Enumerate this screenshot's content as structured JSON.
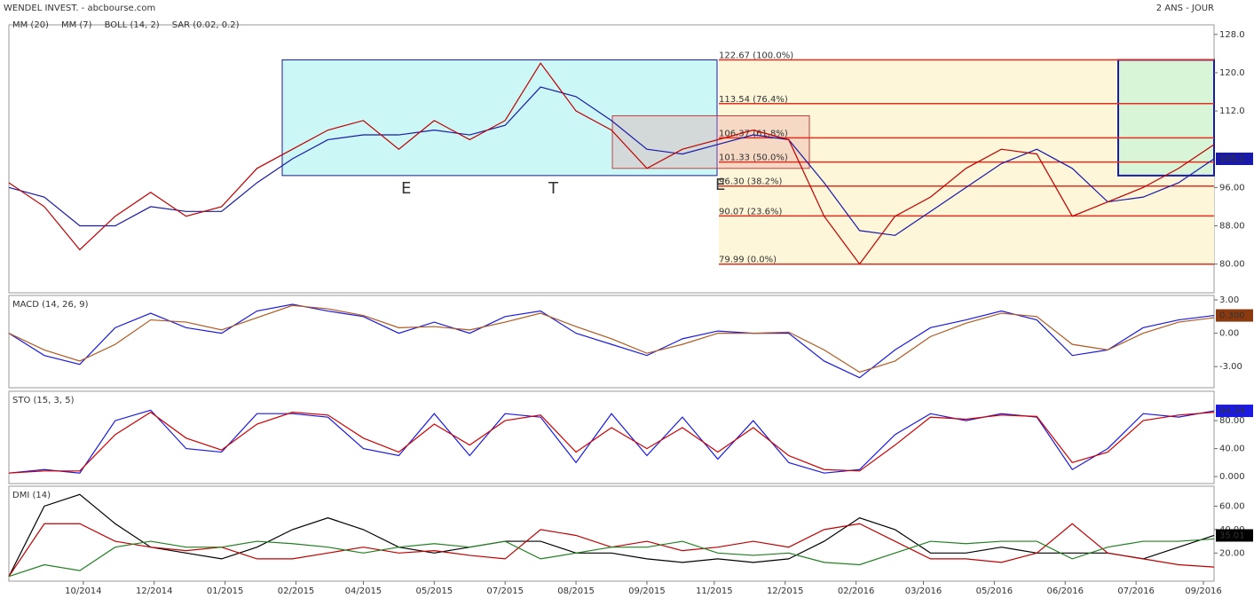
{
  "header": {
    "title": "WENDEL INVEST. - abcbourse.com",
    "period": "2 ANS - JOUR"
  },
  "chart_data": [
    {
      "type": "line",
      "legend": [
        "BOLL (14, 2)",
        "SAR (0.02, 0.2)"
      ],
      "x": [
        0,
        10,
        20,
        30,
        40,
        50,
        60,
        70,
        80,
        90,
        100,
        110,
        120,
        130,
        140,
        150,
        160,
        170,
        180,
        190,
        200,
        210,
        220,
        230,
        240,
        250,
        260,
        270,
        280,
        290,
        300,
        310,
        320,
        330,
        340
      ],
      "series": [
        {
          "name": "MM (20)",
          "color": "#1a1aa8",
          "values": [
            96,
            94,
            88,
            88,
            92,
            91,
            91,
            97,
            102,
            106,
            107,
            107,
            108,
            107,
            109,
            117,
            115,
            110,
            104,
            103,
            105,
            107,
            106,
            97,
            87,
            86,
            91,
            96,
            101,
            104,
            100,
            93,
            94,
            97,
            102
          ]
        },
        {
          "name": "MM (7)",
          "color": "#c00000",
          "values": [
            97,
            92,
            83,
            90,
            95,
            90,
            92,
            100,
            104,
            108,
            110,
            104,
            110,
            106,
            110,
            122,
            112,
            108,
            100,
            104,
            106,
            108,
            106,
            90,
            80,
            90,
            94,
            100,
            104,
            103,
            90,
            93,
            96,
            100,
            105
          ]
        }
      ],
      "fib": [
        {
          "value": 122.67,
          "label": "122.67 (100.0%)"
        },
        {
          "value": 113.54,
          "label": "113.54 (76.4%)"
        },
        {
          "value": 106.37,
          "label": "106.37 (61.8%)"
        },
        {
          "value": 101.33,
          "label": "101.33 (50.0%)"
        },
        {
          "value": 96.3,
          "label": "96.30 (38.2%)"
        },
        {
          "value": 90.07,
          "label": "90.07 (23.6%)"
        },
        {
          "value": 79.99,
          "label": "79.99 (0.0%)"
        }
      ],
      "annotations": [
        "E",
        "T",
        "E"
      ],
      "last_label": "105.2",
      "last_color": "#1a1aa8",
      "xlim": [
        0,
        340
      ],
      "ylim": [
        74,
        130
      ],
      "yticks": [
        {
          "value": 128,
          "label": "128.0"
        },
        {
          "value": 120,
          "label": "120.0"
        },
        {
          "value": 112,
          "label": "112.0"
        },
        {
          "value": 96,
          "label": "96.00"
        },
        {
          "value": 88,
          "label": "88.00"
        },
        {
          "value": 80,
          "label": "80.00"
        }
      ]
    },
    {
      "type": "line",
      "title": "MACD (14, 26, 9)",
      "x": [
        0,
        10,
        20,
        30,
        40,
        50,
        60,
        70,
        80,
        90,
        100,
        110,
        120,
        130,
        140,
        150,
        160,
        170,
        180,
        190,
        200,
        210,
        220,
        230,
        240,
        250,
        260,
        270,
        280,
        290,
        300,
        310,
        320,
        330,
        340
      ],
      "series": [
        {
          "color": "#1a1ae0",
          "values": [
            0,
            -2,
            -2.8,
            0.5,
            1.8,
            0.5,
            0,
            2,
            2.6,
            2,
            1.5,
            0,
            1,
            0,
            1.5,
            2,
            0,
            -1,
            -2,
            -0.5,
            0.2,
            0,
            0,
            -2.5,
            -4,
            -1.5,
            0.5,
            1.2,
            2,
            1.2,
            -2,
            -1.5,
            0.5,
            1.2,
            1.6
          ]
        },
        {
          "color": "#b05a20",
          "values": [
            0,
            -1.5,
            -2.5,
            -1,
            1.2,
            1,
            0.3,
            1.4,
            2.5,
            2.2,
            1.6,
            0.5,
            0.6,
            0.3,
            1,
            1.8,
            0.6,
            -0.5,
            -1.8,
            -1,
            0,
            0,
            0.1,
            -1.5,
            -3.5,
            -2.5,
            -0.3,
            0.9,
            1.8,
            1.5,
            -1,
            -1.5,
            0,
            1,
            1.4
          ]
        }
      ],
      "last_label": "0.300",
      "last_color": "#8b3a10",
      "xlim": [
        0,
        340
      ],
      "ylim": [
        -4.9,
        3.4
      ],
      "yticks": [
        {
          "value": 3,
          "label": "3.00"
        },
        {
          "value": 0,
          "label": "0.00"
        },
        {
          "value": -3,
          "label": "-3.00"
        }
      ]
    },
    {
      "type": "line",
      "title": "STO (15, 3, 5)",
      "x": [
        0,
        10,
        20,
        30,
        40,
        50,
        60,
        70,
        80,
        90,
        100,
        110,
        120,
        130,
        140,
        150,
        160,
        170,
        180,
        190,
        200,
        210,
        220,
        230,
        240,
        250,
        260,
        270,
        280,
        290,
        300,
        310,
        320,
        330,
        340
      ],
      "series": [
        {
          "color": "#1a1ae0",
          "values": [
            5,
            10,
            5,
            80,
            95,
            40,
            35,
            90,
            90,
            85,
            40,
            30,
            90,
            30,
            90,
            85,
            20,
            90,
            30,
            85,
            25,
            80,
            20,
            5,
            10,
            60,
            90,
            80,
            90,
            85,
            10,
            40,
            90,
            85,
            94
          ]
        },
        {
          "color": "#d00000",
          "values": [
            5,
            8,
            8,
            60,
            92,
            55,
            38,
            75,
            92,
            88,
            55,
            35,
            75,
            45,
            80,
            88,
            35,
            70,
            40,
            70,
            35,
            70,
            30,
            10,
            8,
            45,
            85,
            82,
            88,
            86,
            20,
            35,
            80,
            88,
            92
          ]
        }
      ],
      "last_label": "94.34",
      "last_color": "#1a1ae0",
      "xlim": [
        0,
        340
      ],
      "ylim": [
        -10,
        122
      ],
      "yticks": [
        {
          "value": 80,
          "label": "80.00"
        },
        {
          "value": 40,
          "label": "40.00"
        },
        {
          "value": 0,
          "label": "0.000"
        }
      ]
    },
    {
      "type": "line",
      "title": "DMI (14)",
      "x": [
        0,
        10,
        20,
        30,
        40,
        50,
        60,
        70,
        80,
        90,
        100,
        110,
        120,
        130,
        140,
        150,
        160,
        170,
        180,
        190,
        200,
        210,
        220,
        230,
        240,
        250,
        260,
        270,
        280,
        290,
        300,
        310,
        320,
        330,
        340
      ],
      "series": [
        {
          "color": "#000000",
          "values": [
            0,
            60,
            70,
            45,
            25,
            20,
            15,
            25,
            40,
            50,
            40,
            25,
            20,
            25,
            30,
            30,
            20,
            20,
            15,
            12,
            15,
            12,
            15,
            30,
            50,
            40,
            20,
            20,
            25,
            20,
            20,
            20,
            15,
            25,
            35
          ]
        },
        {
          "color": "#c00000",
          "values": [
            0,
            45,
            45,
            30,
            25,
            22,
            25,
            15,
            15,
            20,
            25,
            20,
            22,
            18,
            15,
            40,
            35,
            25,
            30,
            22,
            25,
            30,
            25,
            40,
            45,
            30,
            15,
            15,
            12,
            20,
            45,
            20,
            15,
            10,
            8
          ]
        },
        {
          "color": "#208020",
          "values": [
            0,
            10,
            5,
            25,
            30,
            25,
            25,
            30,
            28,
            25,
            20,
            25,
            28,
            25,
            30,
            15,
            20,
            25,
            25,
            30,
            20,
            18,
            20,
            12,
            10,
            20,
            30,
            28,
            30,
            30,
            15,
            25,
            30,
            30,
            32
          ]
        }
      ],
      "last_label": "35.01",
      "last_color": "#000000",
      "xlim": [
        0,
        340
      ],
      "ylim": [
        -4,
        77
      ],
      "yticks": [
        {
          "value": 60,
          "label": "60.00"
        },
        {
          "value": 40,
          "label": "40.00"
        },
        {
          "value": 20,
          "label": "20.00"
        }
      ],
      "xticks": [
        {
          "value": 21,
          "label": "10/2014"
        },
        {
          "value": 41,
          "label": "12/2014"
        },
        {
          "value": 61,
          "label": "01/2015"
        },
        {
          "value": 81,
          "label": "02/2015"
        },
        {
          "value": 100,
          "label": "04/2015"
        },
        {
          "value": 120,
          "label": "05/2015"
        },
        {
          "value": 140,
          "label": "07/2015"
        },
        {
          "value": 160,
          "label": "08/2015"
        },
        {
          "value": 180,
          "label": "09/2015"
        },
        {
          "value": 199,
          "label": "11/2015"
        },
        {
          "value": 219,
          "label": "12/2015"
        },
        {
          "value": 239,
          "label": "02/2016"
        },
        {
          "value": 258,
          "label": "03/2016"
        },
        {
          "value": 278,
          "label": "05/2016"
        },
        {
          "value": 298,
          "label": "06/2016"
        },
        {
          "value": 318,
          "label": "07/2016"
        },
        {
          "value": 337,
          "label": "09/2016"
        }
      ]
    }
  ]
}
